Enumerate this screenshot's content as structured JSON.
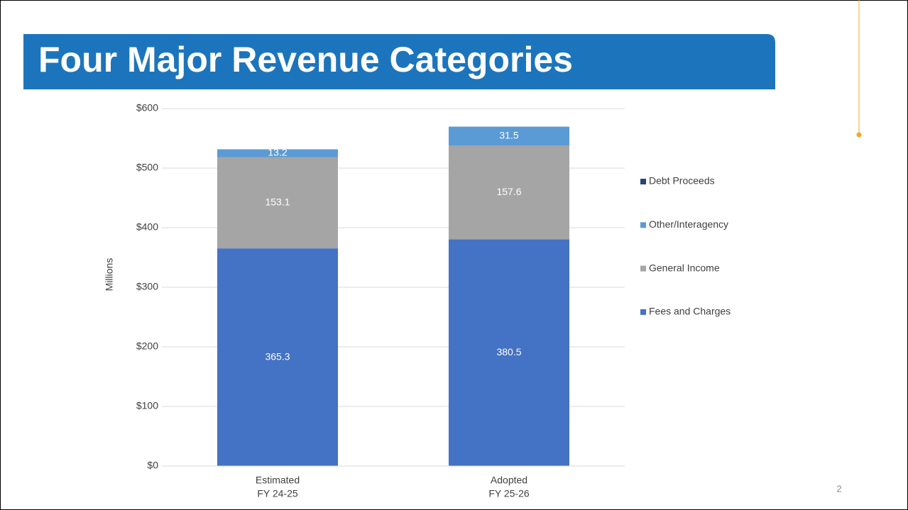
{
  "title": "Four Major Revenue Categories",
  "page_number": "2",
  "chart_data": {
    "type": "stacked_bar",
    "y_label": "Millions",
    "categories": [
      [
        "Estimated",
        "FY 24-25"
      ],
      [
        "Adopted",
        "FY 25-26"
      ]
    ],
    "series": [
      {
        "name": "Fees and Charges",
        "color": "#4472c4",
        "values": [
          365.3,
          380.5
        ]
      },
      {
        "name": "General Income",
        "color": "#a5a5a5",
        "values": [
          153.1,
          157.6
        ]
      },
      {
        "name": "Other/Interagency",
        "color": "#5b9bd5",
        "values": [
          13.2,
          31.5
        ]
      },
      {
        "name": "Debt Proceeds",
        "color": "#264478",
        "values": [
          0,
          0
        ]
      }
    ],
    "ylim": [
      0,
      600
    ],
    "yticks": [
      {
        "value": 0,
        "label": "$0"
      },
      {
        "value": 100,
        "label": "$100"
      },
      {
        "value": 200,
        "label": "$200"
      },
      {
        "value": 300,
        "label": "$300"
      },
      {
        "value": 400,
        "label": "$400"
      },
      {
        "value": 500,
        "label": "$500"
      },
      {
        "value": 600,
        "label": "$600"
      }
    ],
    "grid": true,
    "legend": "right"
  }
}
